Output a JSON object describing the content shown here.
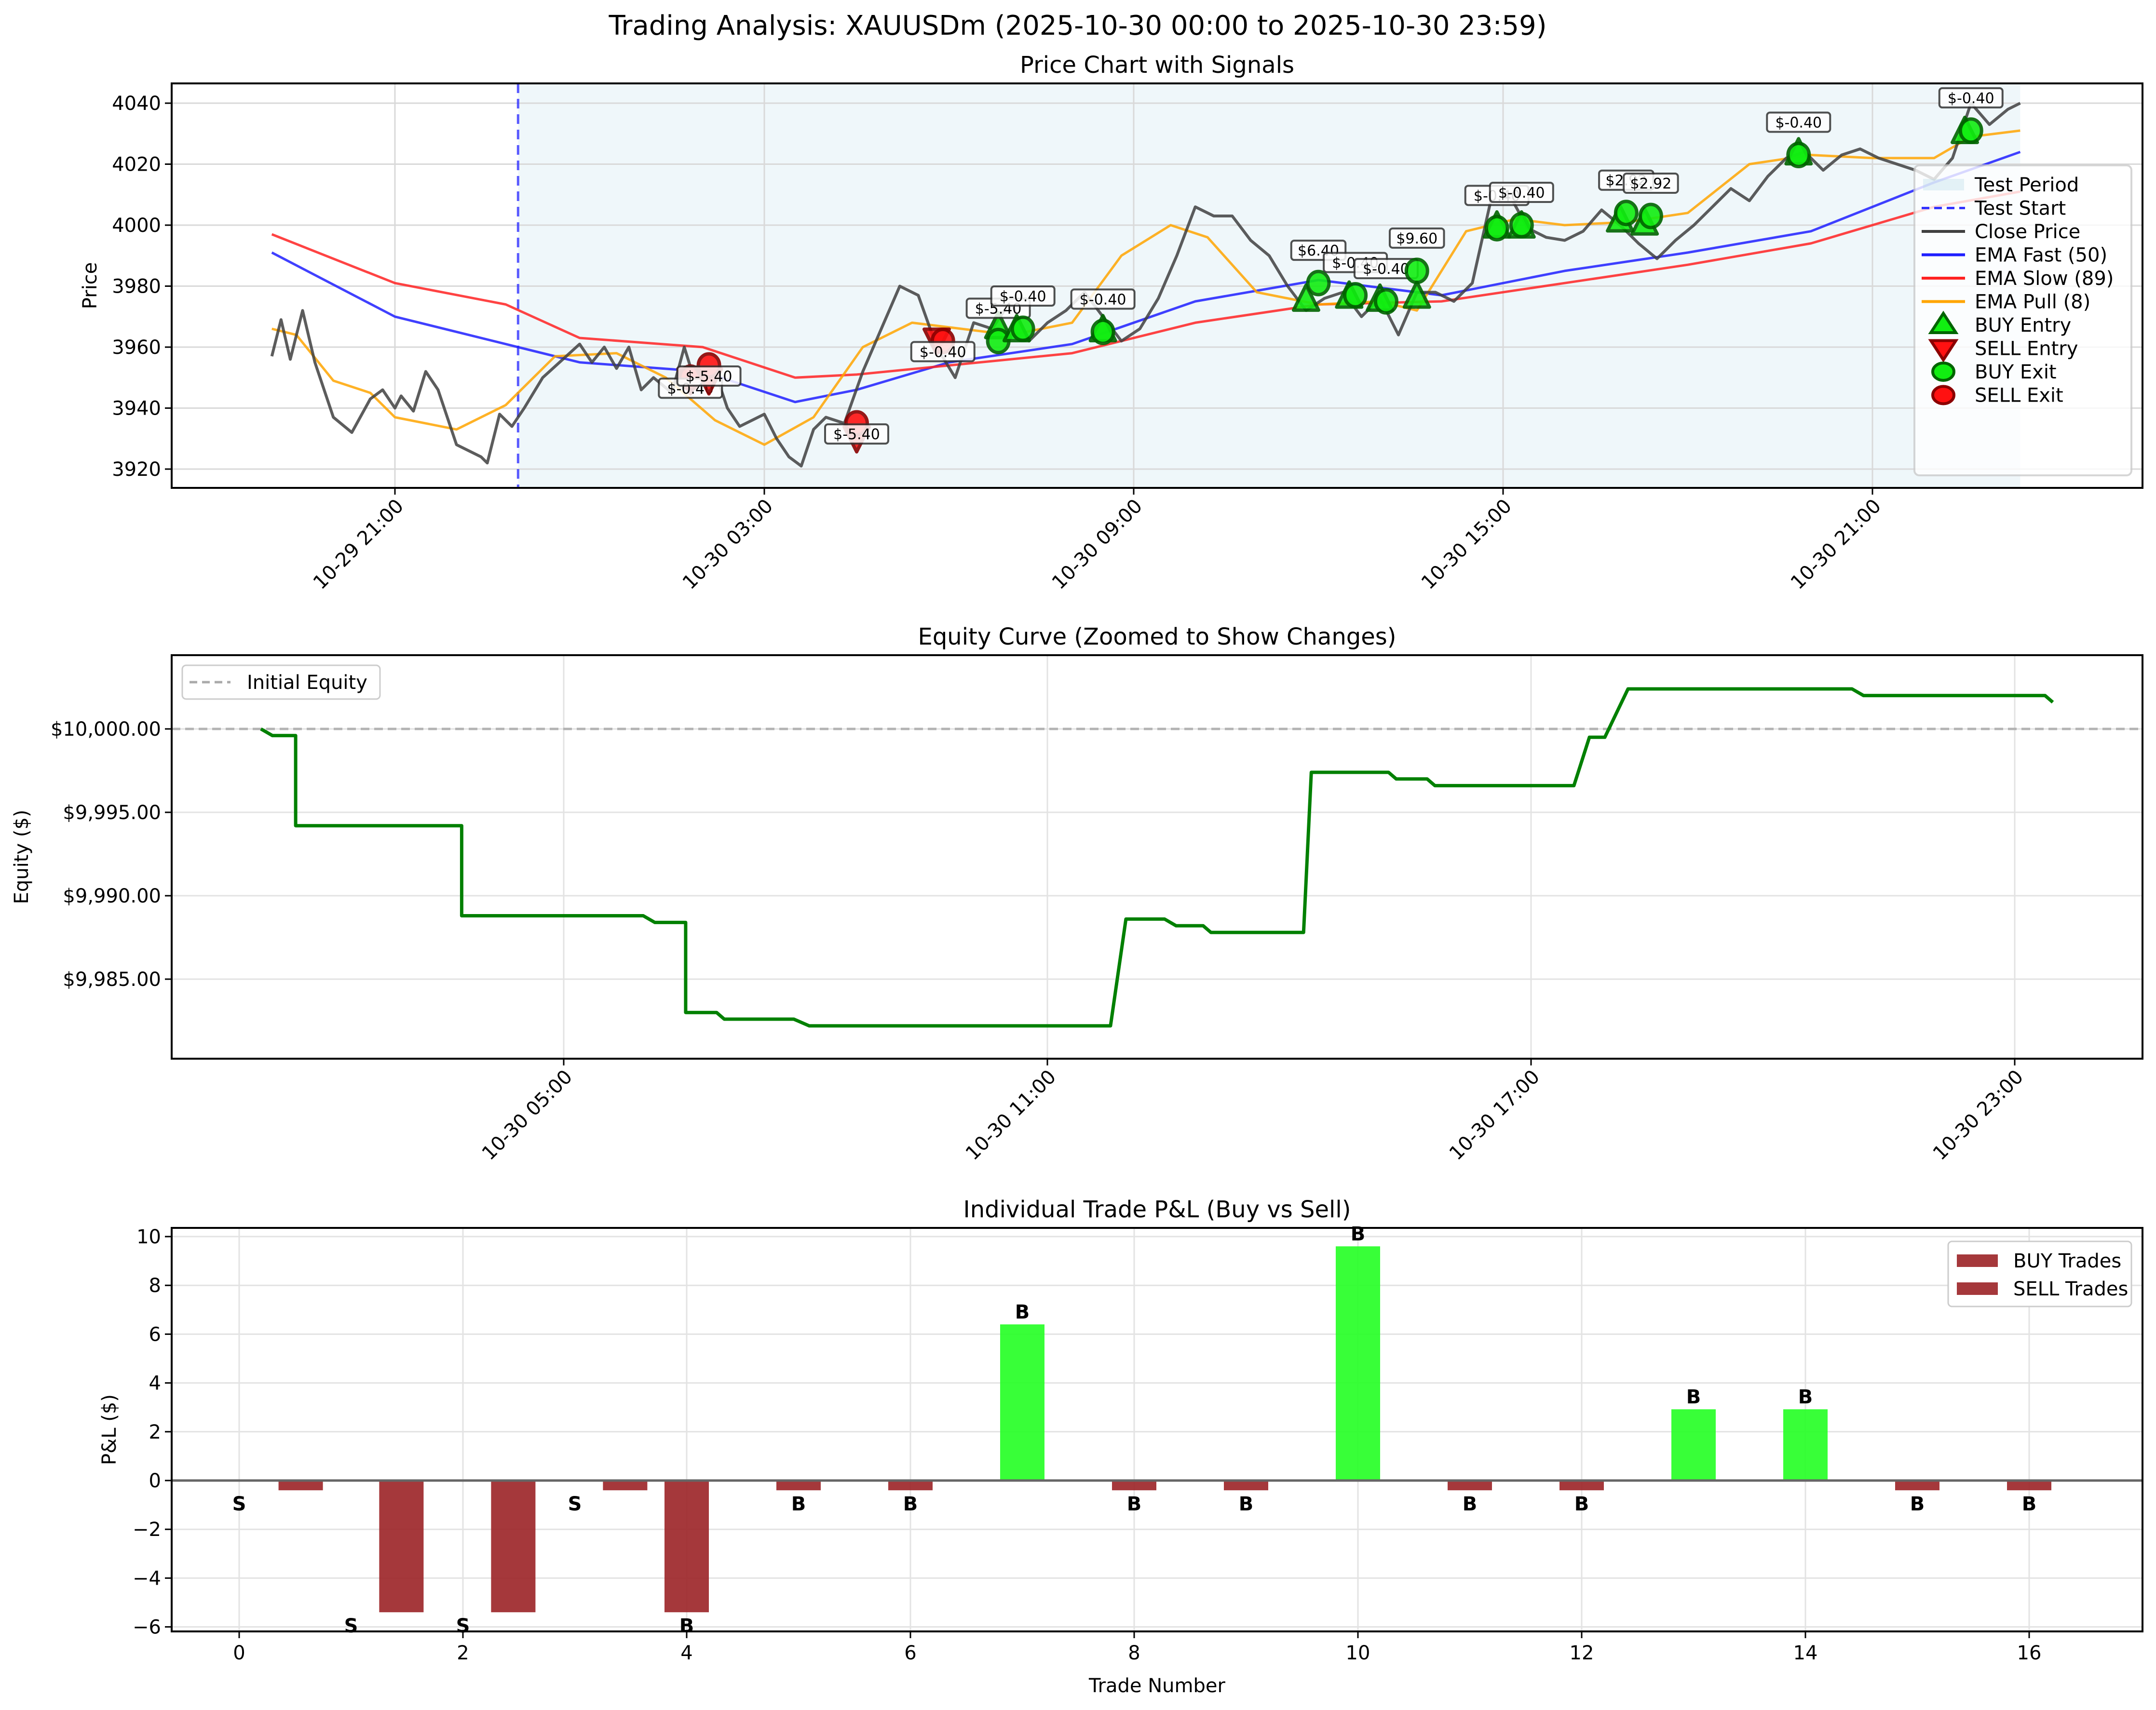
{
  "figure": {
    "suptitle": "Trading Analysis: XAUUSDm (2025-10-30 00:00 to 2025-10-30 23:59)"
  },
  "colors": {
    "close": "#404040",
    "ema_fast": "#1f1fff",
    "ema_slow": "#ff2222",
    "ema_pull": "#ffa500",
    "test_start": "#3333ff",
    "test_period": "#add8e6",
    "buy_marker": "#11ee11",
    "buy_edge": "#006400",
    "sell_marker": "#ff1111",
    "sell_edge": "#8b0000",
    "equity": "#008000",
    "initial_equity": "#aaaaaa",
    "loss_bar": "#9b2226",
    "win_bar": "#22ff22"
  },
  "chart_data": [
    {
      "type": "line",
      "title": "Price Chart with Signals",
      "xlabel": "",
      "ylabel": "Price",
      "ylim": [
        3915,
        4045
      ],
      "yticks": [
        "3920",
        "3940",
        "3960",
        "3980",
        "4000",
        "4020",
        "4040"
      ],
      "xticks": [
        "10-29 21:00",
        "10-30 03:00",
        "10-30 09:00",
        "10-30 15:00",
        "10-30 21:00"
      ],
      "grid": true,
      "legend_position": "right",
      "legend": [
        "Test Period",
        "Test Start",
        "Close Price",
        "EMA Fast (50)",
        "EMA Slow (89)",
        "EMA Pull (8)",
        "BUY Entry",
        "SELL Entry",
        "BUY Exit",
        "SELL Exit"
      ],
      "series": [
        {
          "name": "Close Price",
          "x_hours": [
            -5.0,
            -4.85,
            -4.7,
            -4.5,
            -4.3,
            -4.0,
            -3.7,
            -3.4,
            -3.2,
            -3.0,
            -2.9,
            -2.7,
            -2.5,
            -2.3,
            -2.0,
            -1.8,
            -1.6,
            -1.5,
            -1.3,
            -1.1,
            -0.9,
            -0.6,
            0.0,
            0.2,
            0.4,
            0.6,
            0.8,
            1.0,
            1.2,
            1.5,
            1.7,
            1.9,
            2.2,
            2.4,
            2.6,
            2.8,
            3.0,
            3.2,
            3.4,
            3.6,
            3.8,
            4.0,
            4.3,
            4.6,
            4.9,
            5.2,
            5.5,
            5.8,
            6.1,
            6.4,
            6.7,
            7.0,
            7.3,
            7.6,
            7.9,
            8.2,
            8.5,
            8.8,
            9.1,
            9.4,
            9.7,
            10.0,
            10.3,
            10.6,
            10.9,
            11.2,
            11.5,
            11.8,
            12.1,
            12.4,
            12.7,
            13.0,
            13.3,
            13.6,
            13.9,
            14.2,
            14.5,
            14.8,
            15.1,
            15.4,
            15.7,
            16.0,
            16.3,
            16.6,
            16.9,
            17.2,
            17.5,
            17.8,
            18.1,
            18.4,
            18.7,
            19.0,
            19.3,
            19.6,
            19.9,
            20.2,
            20.5,
            20.8,
            21.1,
            21.4,
            21.7,
            22.0,
            22.3,
            22.6,
            22.9,
            23.2,
            23.4
          ],
          "y": [
            3957,
            3969,
            3956,
            3972,
            3955,
            3937,
            3932,
            3943,
            3946,
            3940,
            3944,
            3939,
            3952,
            3946,
            3928,
            3926,
            3924,
            3922,
            3938,
            3934,
            3940,
            3950,
            3961,
            3955,
            3960,
            3953,
            3960,
            3946,
            3950,
            3945,
            3960,
            3947,
            3952,
            3940,
            3934,
            3936,
            3938,
            3930,
            3924,
            3921,
            3933,
            3937,
            3935,
            3952,
            3966,
            3980,
            3977,
            3960,
            3950,
            3968,
            3966,
            3975,
            3962,
            3968,
            3972,
            3978,
            3970,
            3962,
            3966,
            3976,
            3990,
            4006,
            4003,
            4003,
            3995,
            3990,
            3980,
            3972,
            3976,
            3978,
            3970,
            3976,
            3964,
            3978,
            3978,
            3975,
            3981,
            4008,
            4010,
            3999,
            3996,
            3995,
            3998,
            4005,
            4000,
            3994,
            3989,
            3995,
            4000,
            4006,
            4012,
            4008,
            4016,
            4022,
            4024,
            4018,
            4023,
            4025,
            4022,
            4020,
            4018,
            4015,
            4022,
            4040,
            4033,
            4038,
            4040
          ]
        },
        {
          "name": "EMA Fast (50)",
          "x_hours": [
            -5.0,
            -3.0,
            -1.2,
            0.0,
            2.0,
            3.5,
            4.5,
            6.0,
            8.0,
            10.0,
            12.0,
            14.0,
            16.0,
            18.0,
            20.0,
            22.0,
            23.4
          ],
          "y": [
            3991,
            3970,
            3961,
            3955,
            3952,
            3942,
            3946,
            3955,
            3961,
            3975,
            3982,
            3977,
            3985,
            3991,
            3998,
            4014,
            4024
          ]
        },
        {
          "name": "EMA Slow (89)",
          "x_hours": [
            -5.0,
            -3.0,
            -1.2,
            0.0,
            2.0,
            3.5,
            4.5,
            6.0,
            8.0,
            10.0,
            12.0,
            14.0,
            16.0,
            18.0,
            20.0,
            22.0,
            23.4
          ],
          "y": [
            3997,
            3981,
            3974,
            3963,
            3960,
            3950,
            3951,
            3954,
            3958,
            3968,
            3974,
            3975,
            3981,
            3987,
            3994,
            4006,
            4011
          ]
        },
        {
          "name": "EMA Pull (8)",
          "x_hours": [
            -5.0,
            -4.6,
            -4.0,
            -3.4,
            -3.0,
            -2.0,
            -1.2,
            -0.4,
            0.6,
            1.4,
            2.2,
            3.0,
            3.8,
            4.6,
            5.4,
            6.2,
            7.0,
            8.0,
            8.8,
            9.6,
            10.2,
            11.0,
            12.0,
            13.0,
            13.6,
            14.4,
            15.2,
            16.0,
            17.0,
            18.0,
            19.0,
            20.0,
            21.0,
            22.0,
            22.6,
            23.4
          ],
          "y": [
            3966,
            3964,
            3949,
            3945,
            3937,
            3933,
            3941,
            3957,
            3958,
            3950,
            3936,
            3928,
            3937,
            3960,
            3968,
            3966,
            3964,
            3968,
            3990,
            4000,
            3996,
            3978,
            3974,
            3975,
            3972,
            3998,
            4002,
            4000,
            4001,
            4004,
            4020,
            4023,
            4022,
            4022,
            4029,
            4031
          ]
        }
      ],
      "test_start_hour": -1.0,
      "test_period_hours": [
        -1.0,
        23.4
      ],
      "trades": [
        {
          "type": "SELL",
          "entry_hour": 1.8,
          "entry_price": 3950,
          "exit_hour": 1.8,
          "exit_price": 3950,
          "label": "$-0.40"
        },
        {
          "type": "SELL",
          "entry_hour": 2.1,
          "entry_price": 3950,
          "exit_hour": 2.1,
          "exit_price": 3954,
          "label": "$-5.40"
        },
        {
          "type": "SELL",
          "entry_hour": 4.5,
          "entry_price": 3931,
          "exit_hour": 4.5,
          "exit_price": 3935,
          "label": "$-5.40"
        },
        {
          "type": "SELL",
          "entry_hour": 5.8,
          "entry_price": 3963,
          "exit_hour": 5.9,
          "exit_price": 3962,
          "label": "$-0.40"
        },
        {
          "type": "BUY",
          "entry_hour": 6.8,
          "entry_price": 3966,
          "exit_hour": 6.8,
          "exit_price": 3962,
          "label": "$-5.40"
        },
        {
          "type": "BUY",
          "entry_hour": 7.1,
          "entry_price": 3965,
          "exit_hour": 7.2,
          "exit_price": 3966,
          "label": "$-0.40"
        },
        {
          "type": "BUY",
          "entry_hour": 8.5,
          "entry_price": 3965,
          "exit_hour": 8.5,
          "exit_price": 3965,
          "label": "$-0.40"
        },
        {
          "type": "BUY",
          "entry_hour": 11.8,
          "entry_price": 3975,
          "exit_hour": 12.0,
          "exit_price": 3981,
          "label": "$6.40"
        },
        {
          "type": "BUY",
          "entry_hour": 12.5,
          "entry_price": 3976,
          "exit_hour": 12.6,
          "exit_price": 3977,
          "label": "$-0.40"
        },
        {
          "type": "BUY",
          "entry_hour": 13.0,
          "entry_price": 3975,
          "exit_hour": 13.1,
          "exit_price": 3975,
          "label": "$-0.40"
        },
        {
          "type": "BUY",
          "entry_hour": 13.6,
          "entry_price": 3976,
          "exit_hour": 13.6,
          "exit_price": 3985,
          "label": "$9.60"
        },
        {
          "type": "BUY",
          "entry_hour": 14.9,
          "entry_price": 3999,
          "exit_hour": 14.9,
          "exit_price": 3999,
          "label": "$-0.40"
        },
        {
          "type": "BUY",
          "entry_hour": 15.3,
          "entry_price": 3999,
          "exit_hour": 15.3,
          "exit_price": 4000,
          "label": "$-0.40"
        },
        {
          "type": "BUY",
          "entry_hour": 16.9,
          "entry_price": 4001,
          "exit_hour": 17.0,
          "exit_price": 4004,
          "label": "$2.92"
        },
        {
          "type": "BUY",
          "entry_hour": 17.3,
          "entry_price": 4000,
          "exit_hour": 17.4,
          "exit_price": 4003,
          "label": "$2.92"
        },
        {
          "type": "BUY",
          "entry_hour": 19.8,
          "entry_price": 4023,
          "exit_hour": 19.8,
          "exit_price": 4023,
          "label": "$-0.40"
        },
        {
          "type": "BUY",
          "entry_hour": 22.5,
          "entry_price": 4030,
          "exit_hour": 22.6,
          "exit_price": 4031,
          "label": "$-0.40"
        }
      ]
    },
    {
      "type": "line",
      "title": "Equity Curve (Zoomed to Show Changes)",
      "xlabel": "",
      "ylabel": "Equity ($)",
      "ylim": [
        9980.3,
        10004.3
      ],
      "yticks": [
        "$9,985.00",
        "$9,990.00",
        "$9,995.00",
        "$10,000.00"
      ],
      "xticks": [
        "10-30 05:00",
        "10-30 11:00",
        "10-30 17:00",
        "10-30 23:00"
      ],
      "grid": true,
      "legend": [
        "Initial Equity"
      ],
      "legend_position": "upper left",
      "initial_equity": 10000,
      "series": [
        {
          "name": "Equity",
          "x_hours": [
            0.0,
            0.15,
            0.45,
            0.45,
            2.6,
            2.6,
            4.95,
            5.1,
            5.5,
            5.5,
            5.9,
            6.0,
            6.9,
            7.1,
            11.0,
            11.2,
            11.7,
            11.85,
            12.2,
            12.3,
            13.5,
            13.6,
            14.6,
            14.7,
            15.1,
            15.2,
            17.0,
            17.2,
            17.4,
            17.7,
            20.6,
            20.75,
            23.1,
            23.2
          ],
          "y": [
            10000,
            9999.6,
            9999.6,
            9994.2,
            9994.2,
            9988.8,
            9988.8,
            9988.4,
            9988.4,
            9983.0,
            9983.0,
            9982.6,
            9982.6,
            9982.2,
            9982.2,
            9988.6,
            9988.6,
            9988.2,
            9988.2,
            9987.8,
            9987.8,
            9997.4,
            9997.4,
            9997.0,
            9997.0,
            9996.6,
            9996.6,
            9999.5,
            9999.5,
            10002.4,
            10002.4,
            10002.0,
            10002.0,
            10001.6
          ]
        }
      ]
    },
    {
      "type": "bar",
      "title": "Individual Trade P&L (Buy vs Sell)",
      "xlabel": "Trade Number",
      "ylabel": "P&L ($)",
      "ylim": [
        -6.1,
        10.4
      ],
      "yticks": [
        "−6",
        "−4",
        "−2",
        "0",
        "2",
        "4",
        "6",
        "8",
        "10"
      ],
      "xticks": [
        "0",
        "2",
        "4",
        "6",
        "8",
        "10",
        "12",
        "14",
        "16"
      ],
      "grid": true,
      "legend": [
        "BUY Trades",
        "SELL Trades"
      ],
      "legend_position": "upper right",
      "categories": [
        0,
        1,
        2,
        3,
        4,
        5,
        6,
        7,
        8,
        9,
        10,
        11,
        12,
        13,
        14,
        15,
        16
      ],
      "series": [
        {
          "name": "P&L",
          "values": [
            -0.4,
            -5.4,
            -5.4,
            -0.4,
            -5.4,
            -0.4,
            -0.4,
            6.4,
            -0.4,
            -0.4,
            9.6,
            -0.4,
            -0.4,
            2.92,
            2.92,
            -0.4,
            -0.4
          ]
        }
      ],
      "bar_x": [
        0.55,
        1.45,
        2.45,
        3.45,
        4.0,
        5.0,
        6.0,
        7.0,
        8.0,
        9.0,
        10.0,
        11.0,
        12.0,
        13.0,
        14.0,
        15.0,
        16.0
      ],
      "bar_labels": [
        {
          "x": 0,
          "text": "S"
        },
        {
          "x": 1,
          "text": "S"
        },
        {
          "x": 2,
          "text": "S"
        },
        {
          "x": 3,
          "text": "S"
        },
        {
          "x": 4,
          "text": "B"
        },
        {
          "x": 5,
          "text": "B"
        },
        {
          "x": 6,
          "text": "B"
        },
        {
          "x": 7,
          "text": "B"
        },
        {
          "x": 8,
          "text": "B"
        },
        {
          "x": 9,
          "text": "B"
        },
        {
          "x": 10,
          "text": "B"
        },
        {
          "x": 11,
          "text": "B"
        },
        {
          "x": 12,
          "text": "B"
        },
        {
          "x": 13,
          "text": "B"
        },
        {
          "x": 14,
          "text": "B"
        },
        {
          "x": 15,
          "text": "B"
        },
        {
          "x": 16,
          "text": "B"
        }
      ]
    }
  ]
}
